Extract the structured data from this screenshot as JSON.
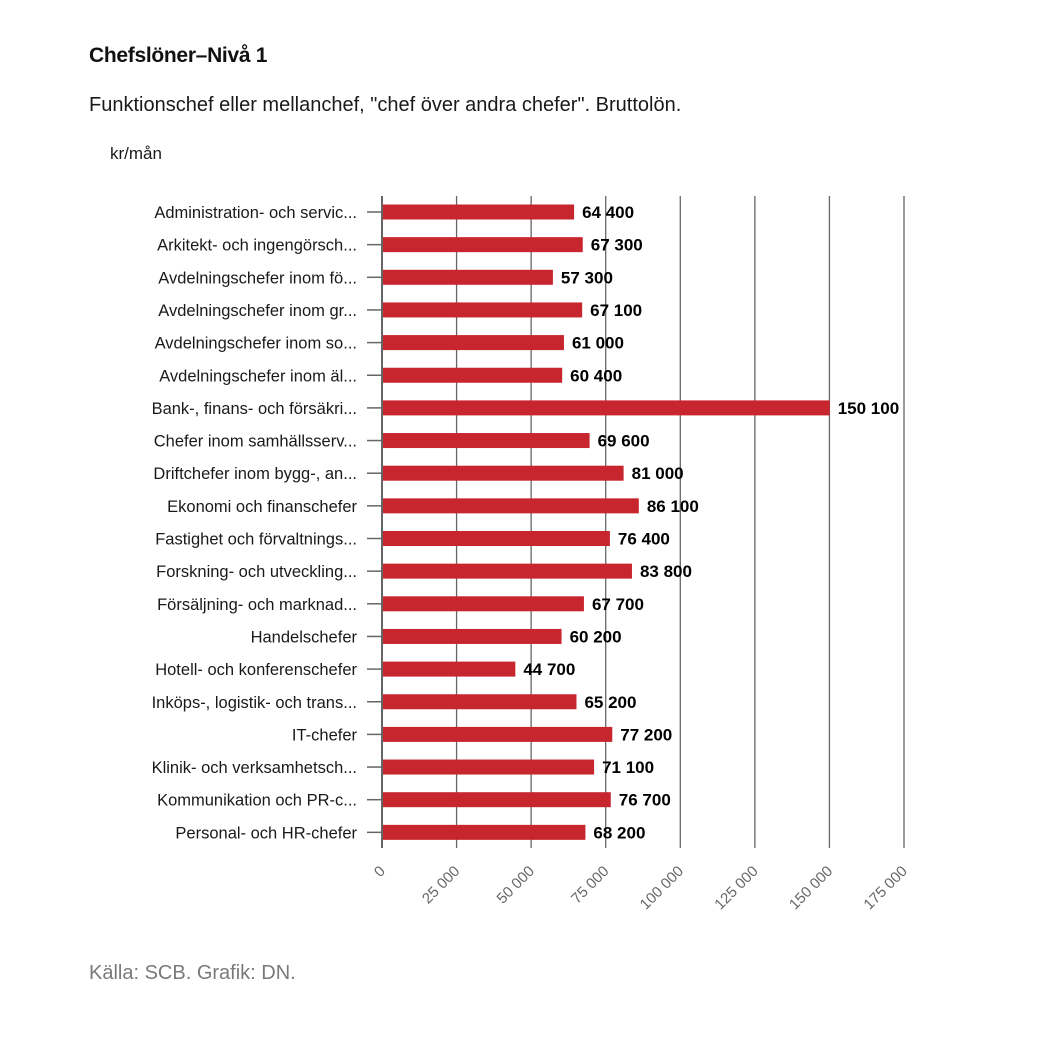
{
  "header": {
    "title": "Chefslöner–Nivå 1",
    "subtitle": "Funktionschef eller mellanchef, \"chef över andra chefer\". Bruttolön.",
    "unit": "kr/mån"
  },
  "footer": {
    "source": "Källa: SCB. Grafik: DN."
  },
  "colors": {
    "bar": "#c8262f",
    "grid": "#666666",
    "axis": "#666666"
  },
  "chart_data": {
    "type": "bar",
    "orientation": "horizontal",
    "title": "Chefslöner–Nivå 1",
    "subtitle": "Funktionschef eller mellanchef, \"chef över andra chefer\". Bruttolön.",
    "xlabel": "",
    "ylabel": "kr/mån",
    "xlim": [
      0,
      175000
    ],
    "grid": true,
    "legend": "none",
    "ticks": [
      0,
      25000,
      50000,
      75000,
      100000,
      125000,
      150000,
      175000
    ],
    "tick_labels": [
      "0",
      "25 000",
      "50 000",
      "75 000",
      "100 000",
      "125 000",
      "150 000",
      "175 000"
    ],
    "categories": [
      "Administration- och servic...",
      "Arkitekt- och ingengörsch...",
      "Avdelningschefer inom fö...",
      "Avdelningschefer inom gr...",
      "Avdelningschefer inom so...",
      "Avdelningschefer inom äl...",
      "Bank-, finans- och försäkri...",
      "Chefer inom samhällsserv...",
      "Driftchefer inom bygg-, an...",
      "Ekonomi och finanschefer",
      "Fastighet och förvaltnings...",
      "Forskning- och utveckling...",
      "Försäljning- och marknad...",
      "Handelschefer",
      "Hotell- och konferenschefer",
      "Inköps-, logistik- och trans...",
      "IT-chefer",
      "Klinik- och verksamhetsch...",
      "Kommunikation och PR-c...",
      "Personal- och HR-chefer"
    ],
    "values": [
      64400,
      67300,
      57300,
      67100,
      61000,
      60400,
      150100,
      69600,
      81000,
      86100,
      76400,
      83800,
      67700,
      60200,
      44700,
      65200,
      77200,
      71100,
      76700,
      68200
    ],
    "value_labels": [
      "64 400",
      "67 300",
      "57 300",
      "67 100",
      "61 000",
      "60 400",
      "150 100",
      "69 600",
      "81 000",
      "86 100",
      "76 400",
      "83 800",
      "67 700",
      "60 200",
      "44 700",
      "65 200",
      "77 200",
      "71 100",
      "76 700",
      "68 200"
    ]
  }
}
